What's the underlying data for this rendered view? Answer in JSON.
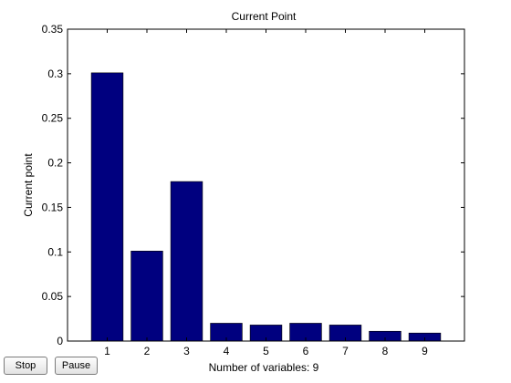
{
  "chart_data": {
    "type": "bar",
    "title": "Current Point",
    "xlabel": "Number of variables: 9",
    "ylabel": "Current point",
    "categories": [
      "1",
      "2",
      "3",
      "4",
      "5",
      "6",
      "7",
      "8",
      "9"
    ],
    "values": [
      0.301,
      0.101,
      0.179,
      0.02,
      0.018,
      0.02,
      0.018,
      0.011,
      0.009
    ],
    "ylim": [
      0,
      0.35
    ],
    "xlim": [
      0,
      10
    ],
    "yticks": [
      0,
      0.05,
      0.1,
      0.15,
      0.2,
      0.25,
      0.3,
      0.35
    ],
    "ytick_labels": [
      "0",
      "0.05",
      "0.1",
      "0.15",
      "0.2",
      "0.25",
      "0.3",
      "0.35"
    ],
    "grid": false,
    "bar_color": "#00007f"
  },
  "controls": {
    "stop_label": "Stop",
    "pause_label": "Pause"
  }
}
